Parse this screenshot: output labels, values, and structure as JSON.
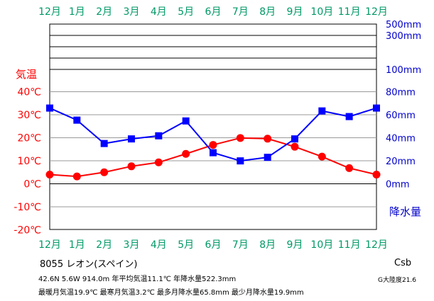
{
  "chart_data": {
    "type": "line",
    "month_labels": [
      "12月",
      "1月",
      "2月",
      "3月",
      "4月",
      "5月",
      "6月",
      "7月",
      "8月",
      "9月",
      "10月",
      "11月",
      "12月"
    ],
    "temp_axis": {
      "label": "気温",
      "ticks": [
        {
          "v": 40,
          "t": "40℃"
        },
        {
          "v": 30,
          "t": "30℃"
        },
        {
          "v": 20,
          "t": "20℃"
        },
        {
          "v": 10,
          "t": "10℃"
        },
        {
          "v": 0,
          "t": "0℃"
        },
        {
          "v": -10,
          "t": "-10℃"
        },
        {
          "v": -20,
          "t": "-20℃"
        }
      ],
      "ylim": [
        -20,
        40
      ]
    },
    "precip_axis": {
      "label": "降水量",
      "ticks": [
        {
          "v": 500,
          "t": "500mm"
        },
        {
          "v": 300,
          "t": "300mm"
        },
        {
          "v": 100,
          "t": "100mm"
        },
        {
          "v": 80,
          "t": "80mm"
        },
        {
          "v": 60,
          "t": "60mm"
        },
        {
          "v": 40,
          "t": "40mm"
        },
        {
          "v": 20,
          "t": "20mm"
        },
        {
          "v": 0,
          "t": "0mm"
        }
      ]
    },
    "series": [
      {
        "key": "temperature",
        "color": "#ff0000",
        "marker": "circle",
        "values": [
          4.0,
          3.2,
          5.0,
          7.6,
          9.3,
          13.0,
          16.9,
          19.9,
          19.6,
          16.1,
          11.8,
          6.8,
          4.0
        ]
      },
      {
        "key": "precipitation",
        "color": "#0000ff",
        "marker": "square",
        "values": [
          65.8,
          55.3,
          35.0,
          39.0,
          41.7,
          54.6,
          27.0,
          19.9,
          23.0,
          39.0,
          63.3,
          58.4,
          65.8
        ]
      }
    ],
    "grid": true
  },
  "station": {
    "line1": "8055  レオン(スペイン)",
    "line2": "42.6N  5.6W  914.0m  年平均気温11.1℃  年降水量522.3mm",
    "line3": "最暖月気温19.9℃  最寒月気温3.2℃  最多月降水量65.8mm  最少月降水量19.9mm",
    "climate": "Csb",
    "continentality": "G大陸度21.6"
  }
}
